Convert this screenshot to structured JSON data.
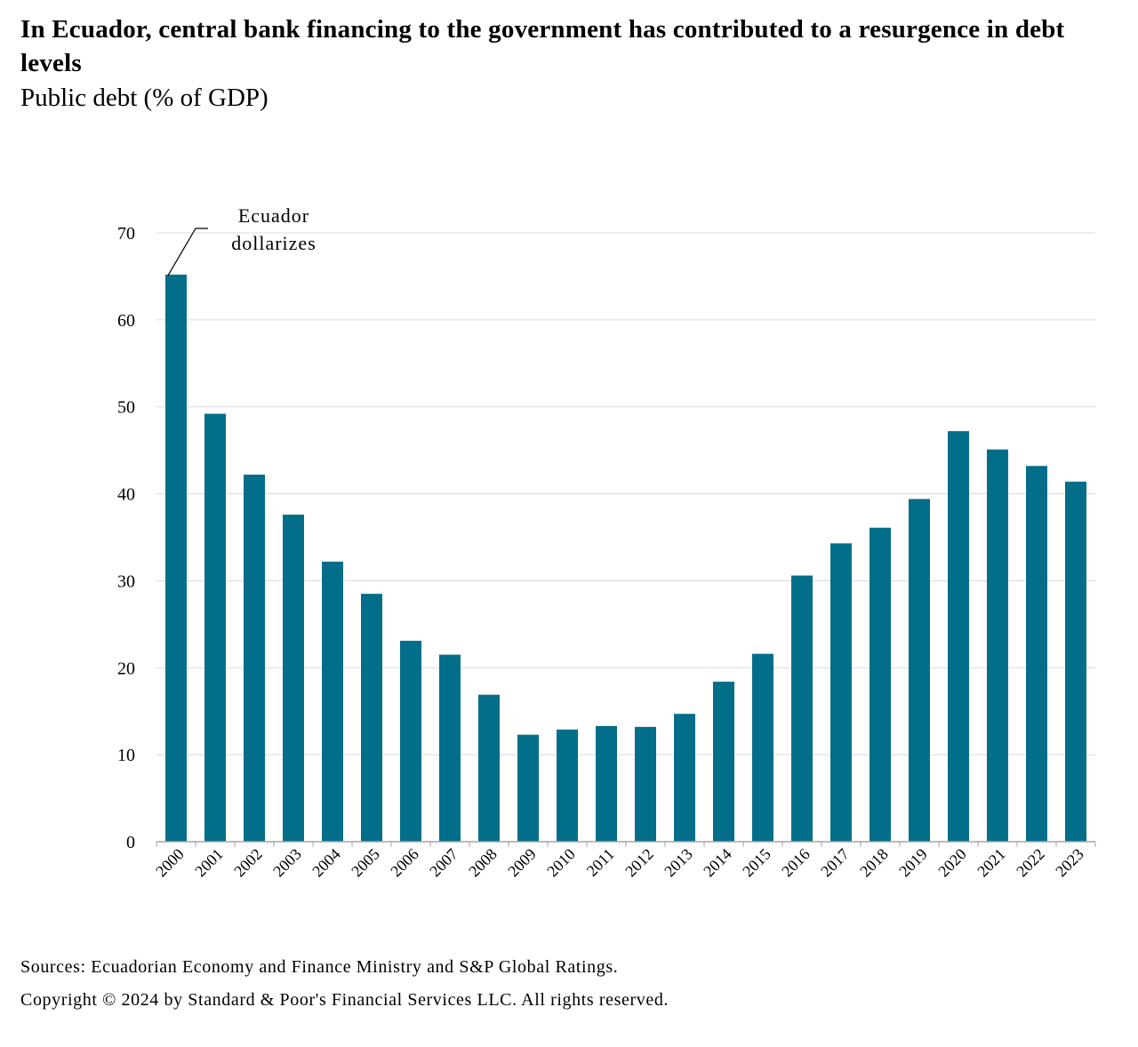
{
  "header": {
    "title": "In Ecuador, central bank financing to the government has contributed to a resurgence in debt levels",
    "subtitle": "Public debt (% of GDP)"
  },
  "footer": {
    "source": "Sources: Ecuadorian Economy and Finance Ministry and S&P Global Ratings.",
    "copyright": "Copyright © 2024 by Standard & Poor's Financial Services LLC. All rights reserved."
  },
  "chart_data": {
    "type": "bar",
    "categories": [
      "2000",
      "2001",
      "2002",
      "2003",
      "2004",
      "2005",
      "2006",
      "2007",
      "2008",
      "2009",
      "2010",
      "2011",
      "2012",
      "2013",
      "2014",
      "2015",
      "2016",
      "2017",
      "2018",
      "2019",
      "2020",
      "2021",
      "2022",
      "2023"
    ],
    "values": [
      65.2,
      49.2,
      42.2,
      37.6,
      32.2,
      28.5,
      23.1,
      21.5,
      16.9,
      12.3,
      12.9,
      13.3,
      13.2,
      14.7,
      18.4,
      21.6,
      30.6,
      34.3,
      36.1,
      39.4,
      47.2,
      45.1,
      43.2,
      41.4
    ],
    "ylim": [
      0,
      70
    ],
    "yticks": [
      0,
      10,
      20,
      30,
      40,
      50,
      60,
      70
    ],
    "grid": true,
    "bar_color": "#036e8a",
    "annotation": {
      "category": "2000",
      "lines": [
        "Ecuador",
        "dollarizes"
      ]
    }
  }
}
